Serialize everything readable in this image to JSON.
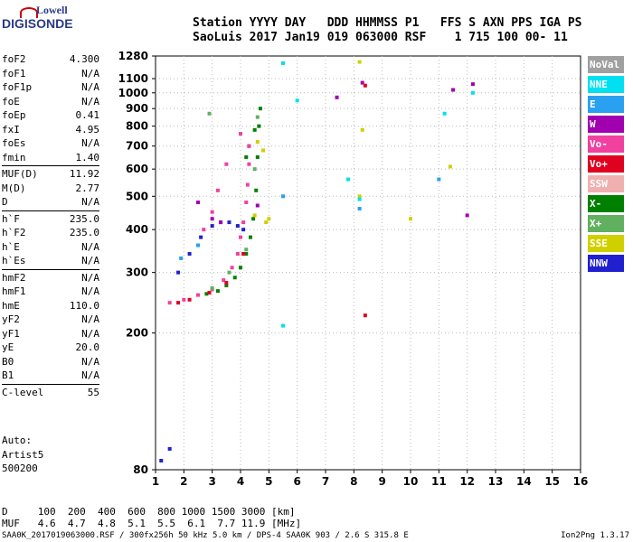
{
  "logo": {
    "top": "Lowell",
    "bottom": "DIGISONDE"
  },
  "header": {
    "line1": "Station YYYY DAY   DDD HHMMSS P1   FFS S AXN PPS IGA PS",
    "line2": "SaoLuis 2017 Jan19 019 063000 RSF    1 715 100 00- 11"
  },
  "params": [
    {
      "k": "foF2",
      "v": "4.300"
    },
    {
      "k": "foF1",
      "v": "N/A"
    },
    {
      "k": "foF1p",
      "v": "N/A"
    },
    {
      "k": "foE",
      "v": "N/A"
    },
    {
      "k": "foEp",
      "v": "0.41"
    },
    {
      "k": "fxI",
      "v": "4.95"
    },
    {
      "k": "foEs",
      "v": "N/A"
    },
    {
      "k": "fmin",
      "v": "1.40"
    },
    {
      "k": "MUF(D)",
      "v": "11.92"
    },
    {
      "k": "M(D)",
      "v": "2.77"
    },
    {
      "k": "D",
      "v": "N/A"
    },
    {
      "k": "h`F",
      "v": "235.0"
    },
    {
      "k": "h`F2",
      "v": "235.0"
    },
    {
      "k": "h`E",
      "v": "N/A"
    },
    {
      "k": "h`Es",
      "v": "N/A"
    },
    {
      "k": "hmF2",
      "v": "N/A"
    },
    {
      "k": "hmF1",
      "v": "N/A"
    },
    {
      "k": "hmE",
      "v": "110.0"
    },
    {
      "k": "yF2",
      "v": "N/A"
    },
    {
      "k": "yF1",
      "v": "N/A"
    },
    {
      "k": "yE",
      "v": "20.0"
    },
    {
      "k": "B0",
      "v": "N/A"
    },
    {
      "k": "B1",
      "v": "N/A"
    },
    {
      "k": "C-level",
      "v": "55"
    }
  ],
  "auto": [
    "Auto:",
    "Artist5",
    "500200"
  ],
  "legend": [
    {
      "label": "NoVal",
      "color": "#a0a0a0",
      "text": "#ffffff"
    },
    {
      "label": "NNE",
      "color": "#00e0f0",
      "text": "#ffffff"
    },
    {
      "label": "E",
      "color": "#2aa0f0",
      "text": "#ffffff"
    },
    {
      "label": "W",
      "color": "#a000b0",
      "text": "#ffffff"
    },
    {
      "label": "Vo-",
      "color": "#f040a0",
      "text": "#ffffff"
    },
    {
      "label": "Vo+",
      "color": "#e00020",
      "text": "#ffffff"
    },
    {
      "label": "SSW",
      "color": "#f0b0b0",
      "text": "#ffffff"
    },
    {
      "label": "X-",
      "color": "#008000",
      "text": "#ffffff"
    },
    {
      "label": "X+",
      "color": "#60b060",
      "text": "#ffffff"
    },
    {
      "label": "SSE",
      "color": "#d0d000",
      "text": "#ffffff"
    },
    {
      "label": "NNW",
      "color": "#2020d0",
      "text": "#ffffff"
    }
  ],
  "footer": {
    "line1": "D     100  200  400  600  800 1000 1500 3000 [km]",
    "line2": "MUF   4.6  4.7  4.8  5.1  5.5  6.1  7.7 11.9 [MHz]",
    "line3": "SAA0K_2017019063000.RSF / 300fx256h 50 kHz 5.0 km / DPS-4 SAA0K 903 / 2.6 S 315.8 E",
    "version": "Ion2Png 1.3.17"
  },
  "chart_data": {
    "type": "scatter",
    "title": "",
    "xlabel": "",
    "ylabel": "",
    "xlim": [
      1,
      16
    ],
    "ylim": [
      80,
      1280
    ],
    "y_scale": "log",
    "x_ticks": [
      1,
      2,
      3,
      4,
      5,
      6,
      7,
      8,
      9,
      10,
      11,
      12,
      13,
      14,
      15,
      16
    ],
    "y_ticks": [
      80,
      200,
      300,
      400,
      500,
      600,
      700,
      800,
      900,
      1000,
      1100,
      1280
    ],
    "grid": true,
    "series": [
      {
        "name": "X-",
        "color": "#008000",
        "points": [
          [
            2.8,
            260
          ],
          [
            3.2,
            265
          ],
          [
            3.5,
            275
          ],
          [
            3.8,
            290
          ],
          [
            4.0,
            310
          ],
          [
            4.2,
            340
          ],
          [
            4.35,
            380
          ],
          [
            4.45,
            430
          ],
          [
            4.55,
            520
          ],
          [
            4.6,
            650
          ],
          [
            4.65,
            800
          ],
          [
            4.7,
            900
          ],
          [
            4.5,
            780
          ],
          [
            4.3,
            700
          ],
          [
            4.2,
            650
          ]
        ]
      },
      {
        "name": "Vo-",
        "color": "#f040a0",
        "points": [
          [
            1.5,
            245
          ],
          [
            2.0,
            250
          ],
          [
            2.5,
            258
          ],
          [
            3.0,
            268
          ],
          [
            3.4,
            285
          ],
          [
            3.7,
            310
          ],
          [
            3.9,
            340
          ],
          [
            4.0,
            380
          ],
          [
            4.1,
            420
          ],
          [
            4.2,
            480
          ],
          [
            4.25,
            540
          ],
          [
            4.3,
            620
          ],
          [
            4.3,
            700
          ],
          [
            4.0,
            760
          ],
          [
            3.5,
            620
          ],
          [
            3.2,
            520
          ],
          [
            3.0,
            450
          ],
          [
            2.7,
            400
          ]
        ]
      },
      {
        "name": "NNW",
        "color": "#2020d0",
        "points": [
          [
            1.8,
            300
          ],
          [
            2.2,
            340
          ],
          [
            2.6,
            380
          ],
          [
            3.0,
            410
          ],
          [
            3.3,
            420
          ],
          [
            3.6,
            420
          ],
          [
            3.9,
            410
          ],
          [
            4.1,
            400
          ],
          [
            1.2,
            85
          ],
          [
            1.5,
            92
          ]
        ]
      },
      {
        "name": "W",
        "color": "#a000b0",
        "points": [
          [
            2.5,
            480
          ],
          [
            3.0,
            430
          ],
          [
            3.3,
            420
          ],
          [
            4.6,
            470
          ],
          [
            7.4,
            970
          ],
          [
            8.3,
            1070
          ],
          [
            11.5,
            1020
          ],
          [
            12.2,
            1060
          ],
          [
            12.0,
            440
          ]
        ]
      },
      {
        "name": "SSE",
        "color": "#d0d000",
        "points": [
          [
            4.6,
            720
          ],
          [
            4.8,
            680
          ],
          [
            4.5,
            440
          ],
          [
            4.9,
            420
          ],
          [
            5.0,
            430
          ],
          [
            8.2,
            1230
          ],
          [
            8.3,
            780
          ],
          [
            8.2,
            500
          ],
          [
            10.0,
            430
          ],
          [
            11.4,
            610
          ]
        ]
      },
      {
        "name": "NNE",
        "color": "#00e0f0",
        "points": [
          [
            5.5,
            1220
          ],
          [
            6.0,
            950
          ],
          [
            7.8,
            560
          ],
          [
            8.2,
            490
          ],
          [
            5.5,
            210
          ],
          [
            12.2,
            1000
          ],
          [
            11.2,
            870
          ]
        ]
      },
      {
        "name": "E",
        "color": "#2aa0f0",
        "points": [
          [
            1.9,
            330
          ],
          [
            2.5,
            360
          ],
          [
            5.5,
            500
          ],
          [
            8.2,
            460
          ],
          [
            11.0,
            560
          ]
        ]
      },
      {
        "name": "Vo+",
        "color": "#e00020",
        "points": [
          [
            1.8,
            245
          ],
          [
            2.2,
            250
          ],
          [
            2.9,
            262
          ],
          [
            3.5,
            280
          ],
          [
            4.1,
            340
          ],
          [
            8.4,
            1050
          ],
          [
            8.4,
            225
          ]
        ]
      },
      {
        "name": "X+",
        "color": "#60b060",
        "points": [
          [
            3.0,
            270
          ],
          [
            3.6,
            300
          ],
          [
            4.2,
            350
          ],
          [
            4.5,
            600
          ],
          [
            4.6,
            850
          ],
          [
            2.9,
            870
          ]
        ]
      }
    ]
  }
}
